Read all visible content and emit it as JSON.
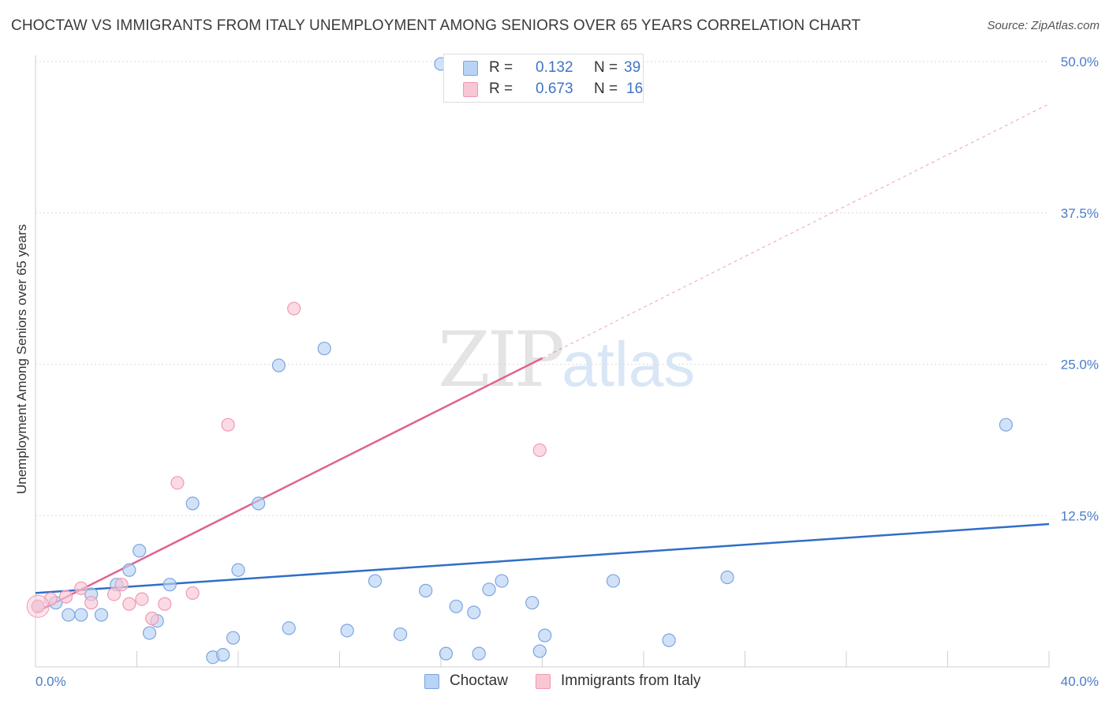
{
  "header": {
    "title": "CHOCTAW VS IMMIGRANTS FROM ITALY UNEMPLOYMENT AMONG SENIORS OVER 65 YEARS CORRELATION CHART",
    "source": "Source: ZipAtlas.com"
  },
  "watermark": {
    "zip": "ZIP",
    "atlas": "atlas"
  },
  "legend": {
    "r_label": "R =",
    "n_label": "N =",
    "choctaw": {
      "r": "0.132",
      "n": "39"
    },
    "italy": {
      "r": "0.673",
      "n": "16"
    }
  },
  "colors": {
    "choctaw_fill": "#b8d3f5",
    "choctaw_stroke": "#7aa6e0",
    "choctaw_line": "#2f6fc7",
    "italy_fill": "#f9c6d4",
    "italy_stroke": "#ee9ab3",
    "italy_line": "#e0638f"
  },
  "chart_data": {
    "type": "scatter",
    "title": "CHOCTAW VS IMMIGRANTS FROM ITALY UNEMPLOYMENT AMONG SENIORS OVER 65 YEARS CORRELATION CHART",
    "xlabel": "",
    "ylabel": "Unemployment Among Seniors over 65 years",
    "xlim": [
      0,
      40
    ],
    "ylim": [
      0,
      52
    ],
    "x_tick_labels": [
      "0.0%",
      "40.0%"
    ],
    "y_ticks": [
      12.5,
      25.0,
      37.5,
      50.0
    ],
    "y_tick_labels": [
      "12.5%",
      "25.0%",
      "37.5%",
      "50.0%"
    ],
    "series": [
      {
        "name": "Choctaw",
        "points": [
          [
            0.1,
            5.0
          ],
          [
            0.8,
            5.3
          ],
          [
            1.3,
            4.3
          ],
          [
            1.8,
            4.3
          ],
          [
            2.2,
            6.0
          ],
          [
            2.6,
            4.3
          ],
          [
            3.2,
            6.8
          ],
          [
            3.7,
            8.0
          ],
          [
            4.1,
            9.6
          ],
          [
            4.5,
            2.8
          ],
          [
            4.8,
            3.8
          ],
          [
            5.3,
            6.8
          ],
          [
            6.2,
            13.5
          ],
          [
            7.0,
            0.8
          ],
          [
            7.4,
            1.0
          ],
          [
            7.8,
            2.4
          ],
          [
            8.0,
            8.0
          ],
          [
            8.8,
            13.5
          ],
          [
            9.6,
            24.9
          ],
          [
            10.0,
            3.2
          ],
          [
            11.4,
            26.3
          ],
          [
            12.3,
            3.0
          ],
          [
            13.4,
            7.1
          ],
          [
            14.4,
            2.7
          ],
          [
            15.4,
            6.3
          ],
          [
            16.0,
            49.8
          ],
          [
            16.2,
            1.1
          ],
          [
            16.6,
            5.0
          ],
          [
            17.3,
            4.5
          ],
          [
            17.5,
            1.1
          ],
          [
            17.9,
            6.4
          ],
          [
            18.4,
            7.1
          ],
          [
            19.6,
            5.3
          ],
          [
            19.9,
            1.3
          ],
          [
            20.1,
            2.6
          ],
          [
            22.8,
            7.1
          ],
          [
            25.0,
            2.2
          ],
          [
            27.3,
            7.4
          ],
          [
            38.3,
            20.0
          ]
        ],
        "trend": {
          "x": [
            0,
            40
          ],
          "y": [
            6.1,
            11.8
          ]
        }
      },
      {
        "name": "Immigrants from Italy",
        "points": [
          [
            0.1,
            5.0
          ],
          [
            0.6,
            5.6
          ],
          [
            1.2,
            5.8
          ],
          [
            1.8,
            6.5
          ],
          [
            2.2,
            5.3
          ],
          [
            3.1,
            6.0
          ],
          [
            3.4,
            6.8
          ],
          [
            3.7,
            5.2
          ],
          [
            4.2,
            5.6
          ],
          [
            4.6,
            4.0
          ],
          [
            5.1,
            5.2
          ],
          [
            5.6,
            15.2
          ],
          [
            6.2,
            6.1
          ],
          [
            7.6,
            20.0
          ],
          [
            10.2,
            29.6
          ],
          [
            19.9,
            17.9
          ]
        ],
        "trend": {
          "x": [
            0,
            20
          ],
          "y": [
            4.5,
            25.5
          ]
        },
        "trend_extension": {
          "x": [
            20,
            40
          ],
          "y": [
            25.5,
            46.5
          ]
        }
      }
    ]
  },
  "bottom_legend": {
    "choctaw": "Choctaw",
    "italy": "Immigrants from Italy"
  }
}
